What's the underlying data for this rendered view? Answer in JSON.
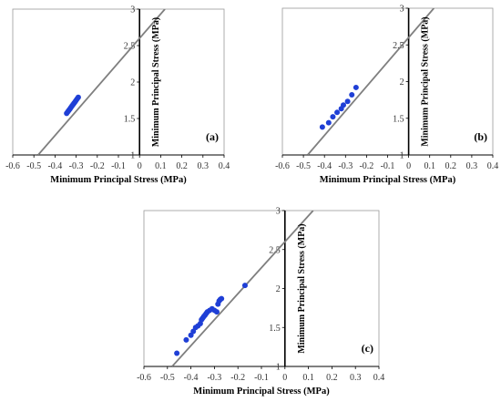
{
  "figure": {
    "background": "#ffffff"
  },
  "style": {
    "point_color": "#1f3fd6",
    "line_color": "#7f7f7f",
    "axis_color": "#000000",
    "box_color": "#9a9a9a",
    "tick_label_color": "#333333"
  },
  "chart_data": [
    {
      "type": "scatter",
      "panel_label": "(a)",
      "xlabel": "Minimum Principal Stress (MPa)",
      "ylabel": "Minimum Principal Stress (MPa)",
      "xlim": [
        -0.6,
        0.4
      ],
      "ylim": [
        1,
        3
      ],
      "xticks": [
        "-0.6",
        "-0.5",
        "-0.4",
        "-0.3",
        "-0.2",
        "-0.1",
        "0",
        "0.1",
        "0.2",
        "0.3",
        "0.4"
      ],
      "yticks": [
        "1",
        "1.5",
        "2",
        "2.5",
        "3"
      ],
      "grid": false,
      "fit_line": {
        "x": [
          -0.48,
          0.12
        ],
        "y": [
          1.0,
          3.0
        ]
      },
      "series": [
        {
          "x": [
            -0.345,
            -0.34,
            -0.335,
            -0.33,
            -0.325,
            -0.32,
            -0.315,
            -0.31,
            -0.305,
            -0.3,
            -0.295,
            -0.29
          ],
          "y": [
            1.57,
            1.59,
            1.61,
            1.63,
            1.65,
            1.67,
            1.69,
            1.71,
            1.73,
            1.75,
            1.77,
            1.79
          ]
        }
      ]
    },
    {
      "type": "scatter",
      "panel_label": "(b)",
      "xlabel": "Minimum Principal Stress (MPa)",
      "ylabel": "Minimum Principal Stress (MPa)",
      "xlim": [
        -0.6,
        0.4
      ],
      "ylim": [
        1,
        3
      ],
      "xticks": [
        "-0.6",
        "-0.5",
        "-0.4",
        "-0.3",
        "-0.2",
        "-0.1",
        "0",
        "0.1",
        "0.2",
        "0.3",
        "0.4"
      ],
      "yticks": [
        "1",
        "1.5",
        "2",
        "2.5",
        "3"
      ],
      "grid": false,
      "fit_line": {
        "x": [
          -0.48,
          0.12
        ],
        "y": [
          1.0,
          3.0
        ]
      },
      "series": [
        {
          "x": [
            -0.41,
            -0.38,
            -0.36,
            -0.34,
            -0.32,
            -0.31,
            -0.29,
            -0.27,
            -0.25
          ],
          "y": [
            1.38,
            1.44,
            1.52,
            1.58,
            1.63,
            1.68,
            1.73,
            1.82,
            1.92
          ]
        }
      ]
    },
    {
      "type": "scatter",
      "panel_label": "(c)",
      "xlabel": "Minimum Principal Stress (MPa)",
      "ylabel": "Minimum Principal Stress (MPa)",
      "xlim": [
        -0.6,
        0.4
      ],
      "ylim": [
        1,
        3
      ],
      "xticks": [
        "-0.6",
        "-0.5",
        "-0.4",
        "-0.3",
        "-0.2",
        "-0.1",
        "0",
        "0.1",
        "0.2",
        "0.3",
        "0.4"
      ],
      "yticks": [
        "1",
        "1.5",
        "2",
        "2.5",
        "3"
      ],
      "grid": false,
      "fit_line": {
        "x": [
          -0.48,
          0.12
        ],
        "y": [
          1.0,
          3.0
        ]
      },
      "series": [
        {
          "x": [
            -0.46,
            -0.42,
            -0.4,
            -0.39,
            -0.38,
            -0.37,
            -0.36,
            -0.355,
            -0.35,
            -0.345,
            -0.34,
            -0.335,
            -0.33,
            -0.32,
            -0.31,
            -0.3,
            -0.29,
            -0.285,
            -0.28,
            -0.275,
            -0.27,
            -0.17
          ],
          "y": [
            1.17,
            1.34,
            1.4,
            1.45,
            1.5,
            1.52,
            1.55,
            1.6,
            1.62,
            1.64,
            1.66,
            1.68,
            1.7,
            1.72,
            1.74,
            1.72,
            1.7,
            1.8,
            1.84,
            1.86,
            1.87,
            2.04
          ]
        }
      ]
    }
  ]
}
